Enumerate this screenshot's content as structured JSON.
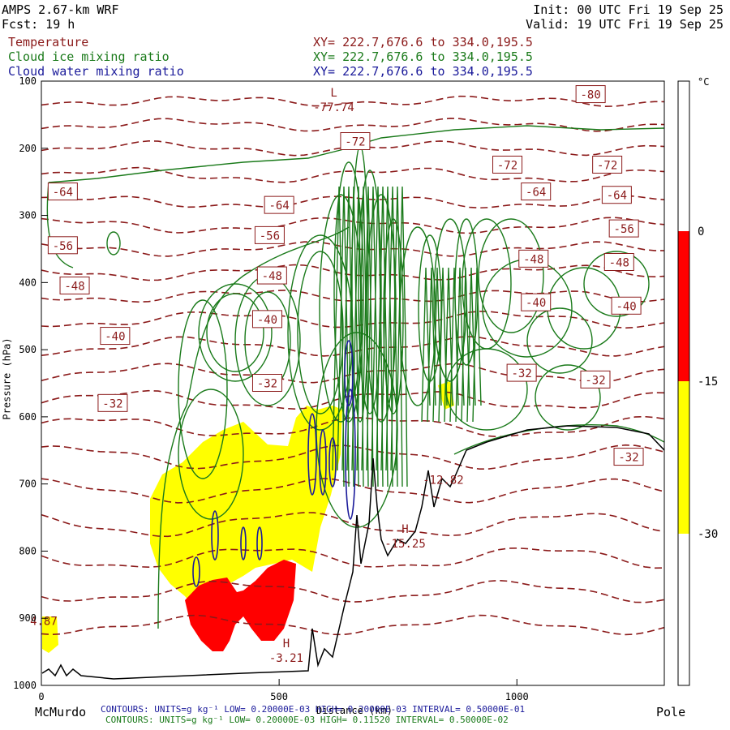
{
  "header": {
    "model": "AMPS 2.67-km WRF",
    "fcst": "Fcst:    19 h",
    "init": "Init: 00 UTC Fri 19 Sep 25",
    "valid": "Valid: 19 UTC Fri 19 Sep 25"
  },
  "fields": [
    {
      "name": "Temperature",
      "xy": "XY= 222.7,676.6 to 334.0,195.5",
      "color": "#8b1a1a"
    },
    {
      "name": "Cloud ice mixing ratio",
      "xy": "XY= 222.7,676.6 to 334.0,195.5",
      "color": "#1a7a1a"
    },
    {
      "name": "Cloud water mixing ratio",
      "xy": "XY= 222.7,676.6 to 334.0,195.5",
      "color": "#1a1a9a"
    }
  ],
  "footer": {
    "left_label": "McMurdo",
    "right_label": "Pole",
    "water_contours": "CONTOURS:  UNITS=g kg⁻¹  LOW= 0.20000E-03  HIGH= 0.20000E-03  INTERVAL=  0.50000E-01",
    "ice_contours": "CONTOURS:  UNITS=g kg⁻¹  LOW= 0.20000E-03  HIGH= 0.11520  INTERVAL=  0.50000E-02"
  },
  "chart_data": {
    "type": "contour",
    "title": "",
    "xlabel": "Distance (km)",
    "ylabel": "Pressure (hPa)",
    "xlim": [
      0,
      1310
    ],
    "ylim": [
      1000,
      100
    ],
    "x_ticks": [
      0,
      500,
      1000
    ],
    "y_ticks": [
      100,
      200,
      300,
      400,
      500,
      600,
      700,
      800,
      900,
      1000
    ],
    "colorbar": {
      "unit": "°C",
      "ticks": [
        0,
        -15,
        -30
      ],
      "bands": [
        {
          "from": -30,
          "to": -15,
          "color": "#ffff00"
        },
        {
          "from": -15,
          "to": 0,
          "color": "#ff0000"
        }
      ]
    },
    "temperature_labels": [
      {
        "text": "-80",
        "x": 1155,
        "p": 120
      },
      {
        "text": "-72",
        "x": 660,
        "p": 190
      },
      {
        "text": "-72",
        "x": 980,
        "p": 225
      },
      {
        "text": "-72",
        "x": 1190,
        "p": 225
      },
      {
        "text": "-64",
        "x": 45,
        "p": 265
      },
      {
        "text": "-64",
        "x": 500,
        "p": 285
      },
      {
        "text": "-64",
        "x": 1040,
        "p": 265
      },
      {
        "text": "-64",
        "x": 1210,
        "p": 270
      },
      {
        "text": "-56",
        "x": 45,
        "p": 345
      },
      {
        "text": "-56",
        "x": 480,
        "p": 330
      },
      {
        "text": "-56",
        "x": 1225,
        "p": 320
      },
      {
        "text": "-48",
        "x": 70,
        "p": 405
      },
      {
        "text": "-48",
        "x": 485,
        "p": 390
      },
      {
        "text": "-48",
        "x": 1035,
        "p": 365
      },
      {
        "text": "-48",
        "x": 1215,
        "p": 370
      },
      {
        "text": "-40",
        "x": 155,
        "p": 480
      },
      {
        "text": "-40",
        "x": 475,
        "p": 455
      },
      {
        "text": "-40",
        "x": 1040,
        "p": 430
      },
      {
        "text": "-40",
        "x": 1230,
        "p": 435
      },
      {
        "text": "-32",
        "x": 150,
        "p": 580
      },
      {
        "text": "-32",
        "x": 475,
        "p": 550
      },
      {
        "text": "-32",
        "x": 1010,
        "p": 535
      },
      {
        "text": "-32",
        "x": 1165,
        "p": 545
      },
      {
        "text": "-32",
        "x": 1235,
        "p": 660
      }
    ],
    "extrema": [
      {
        "type": "L",
        "value": "-77.74",
        "x": 615,
        "p": 140
      },
      {
        "type": "H",
        "value": "-15.25",
        "x": 765,
        "p": 790
      },
      {
        "type": "H",
        "value": "-3.21",
        "x": 515,
        "p": 960
      },
      {
        "type": "",
        "value": "-12.82",
        "x": 845,
        "p": 695
      },
      {
        "type": "",
        "value": "4.87",
        "x": 5,
        "p": 905
      }
    ]
  }
}
